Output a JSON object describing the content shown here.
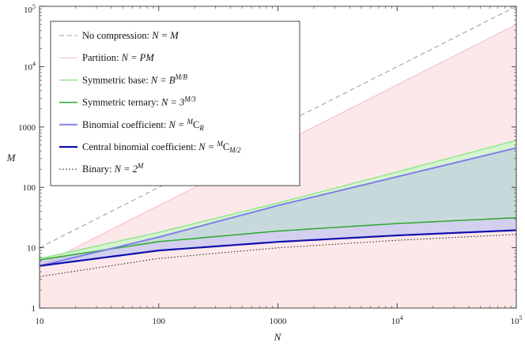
{
  "chart_data": {
    "type": "line",
    "title": "",
    "xlabel": "N",
    "ylabel": "M",
    "xscale": "log",
    "yscale": "log",
    "xlim": [
      10,
      100000
    ],
    "ylim": [
      1,
      100000
    ],
    "x_ticks": [
      {
        "value": 10,
        "label": "10"
      },
      {
        "value": 100,
        "label": "100"
      },
      {
        "value": 1000,
        "label": "1000"
      },
      {
        "value": 10000,
        "label": "10",
        "sup": "4"
      },
      {
        "value": 100000,
        "label": "10",
        "sup": "5"
      }
    ],
    "y_ticks": [
      {
        "value": 1,
        "label": "1"
      },
      {
        "value": 10,
        "label": "10"
      },
      {
        "value": 100,
        "label": "100"
      },
      {
        "value": 1000,
        "label": "1000"
      },
      {
        "value": 10000,
        "label": "10",
        "sup": "4"
      },
      {
        "value": 100000,
        "label": "10",
        "sup": "5"
      }
    ],
    "legend_position": "top-left",
    "series": [
      {
        "key": "nocomp",
        "name": "No compression:",
        "formula": "N = M",
        "color": "#a0a0a0",
        "style": "dashed",
        "width": 1.1,
        "points": [
          [
            10,
            10
          ],
          [
            100000,
            100000
          ]
        ]
      },
      {
        "key": "partition",
        "name": "Partition:",
        "formula": "N = PM",
        "color": "#f4b8b8",
        "style": "solid",
        "width": 0.9,
        "points": [
          [
            10,
            5
          ],
          [
            100000,
            50000
          ]
        ]
      },
      {
        "key": "symbase",
        "name": "Symmetric base:",
        "formula": "N = B",
        "formula_sup": "M/B",
        "color": "#8ee88e",
        "style": "solid",
        "width": 1.5,
        "points": [
          [
            10,
            6.6
          ],
          [
            100,
            18
          ],
          [
            1000,
            55
          ],
          [
            10000,
            180
          ],
          [
            100000,
            600
          ]
        ]
      },
      {
        "key": "symternary",
        "name": "Symmetric ternary:",
        "formula": "N = 3",
        "formula_sup": "M/3",
        "color": "#2ea82e",
        "style": "solid",
        "width": 1.5,
        "points": [
          [
            10,
            6.3
          ],
          [
            100,
            12.6
          ],
          [
            1000,
            18.9
          ],
          [
            10000,
            25.2
          ],
          [
            100000,
            31.4
          ]
        ]
      },
      {
        "key": "binomial",
        "name": "Binomial coefficient:",
        "formula": "N = ",
        "formula_pre_sup": "M",
        "formula_tail": "C",
        "formula_sub": "R",
        "color": "#7f80e8",
        "style": "solid",
        "width": 2,
        "points": [
          [
            10,
            5
          ],
          [
            100,
            15
          ],
          [
            1000,
            50
          ],
          [
            10000,
            150
          ],
          [
            100000,
            450
          ]
        ]
      },
      {
        "key": "central",
        "name": "Central binomial coefficient:",
        "formula": "N = ",
        "formula_pre_sup": "M",
        "formula_tail": "C",
        "formula_sub": "M/2",
        "color": "#1010b0",
        "style": "solid",
        "width": 2.2,
        "points": [
          [
            10,
            5
          ],
          [
            100,
            9
          ],
          [
            1000,
            12.5
          ],
          [
            10000,
            16
          ],
          [
            100000,
            19.5
          ]
        ]
      },
      {
        "key": "binary",
        "name": "Binary:",
        "formula": "N = 2",
        "formula_sup": "M",
        "color": "#333333",
        "style": "dotted",
        "width": 1.1,
        "points": [
          [
            10,
            3.32
          ],
          [
            100,
            6.64
          ],
          [
            1000,
            9.97
          ],
          [
            10000,
            13.29
          ],
          [
            100000,
            16.61
          ]
        ]
      }
    ],
    "fills": [
      {
        "between": [
          "partition",
          "bottom"
        ],
        "color": "#fbe0e0",
        "opacity": 0.75
      },
      {
        "between": [
          "symbase",
          "binomial"
        ],
        "color": "#d6f3d0",
        "opacity": 1
      },
      {
        "between": [
          "binomial",
          "symternary"
        ],
        "color": "#c8d9dc",
        "opacity": 1
      },
      {
        "between": [
          "symternary",
          "central"
        ],
        "color": "#cdcdee",
        "opacity": 0.9
      }
    ]
  }
}
